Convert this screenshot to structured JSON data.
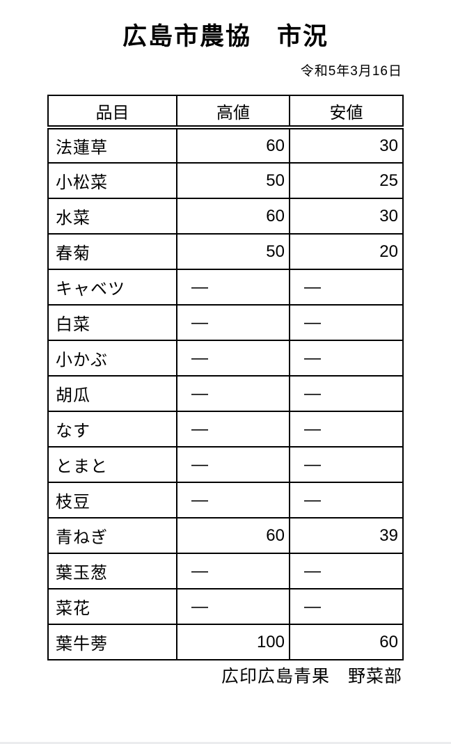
{
  "title": "広島市農協　市況",
  "date": "令和5年3月16日",
  "footer": "広印広島青果　野菜部",
  "no_quote_mark": "—",
  "colors": {
    "text": "#000000",
    "border": "#000000",
    "background": "#ffffff"
  },
  "table": {
    "headers": [
      "品目",
      "高値",
      "安値"
    ],
    "rows": [
      {
        "item": "法蓮草",
        "high": "60",
        "low": "30"
      },
      {
        "item": "小松菜",
        "high": "50",
        "low": "25"
      },
      {
        "item": "水菜",
        "high": "60",
        "low": "30"
      },
      {
        "item": "春菊",
        "high": "50",
        "low": "20"
      },
      {
        "item": "キャベツ",
        "high": "—",
        "low": "—"
      },
      {
        "item": "白菜",
        "high": "—",
        "low": "—"
      },
      {
        "item": "小かぶ",
        "high": "—",
        "low": "—"
      },
      {
        "item": "胡瓜",
        "high": "—",
        "low": "—"
      },
      {
        "item": "なす",
        "high": "—",
        "low": "—"
      },
      {
        "item": "とまと",
        "high": "—",
        "low": "—"
      },
      {
        "item": "枝豆",
        "high": "—",
        "low": "—"
      },
      {
        "item": "青ねぎ",
        "high": "60",
        "low": "39"
      },
      {
        "item": "葉玉葱",
        "high": "—",
        "low": "—"
      },
      {
        "item": "菜花",
        "high": "—",
        "low": "—"
      },
      {
        "item": "葉牛蒡",
        "high": "100",
        "low": "60"
      }
    ]
  }
}
